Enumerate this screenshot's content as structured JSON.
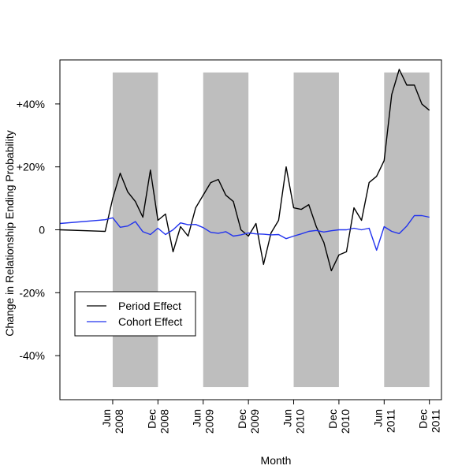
{
  "chart_data": {
    "type": "line",
    "xlabel": "Month",
    "ylabel": "Change in Relationship Ending Probability",
    "x_tick_labels": [
      {
        "month": "Jun",
        "year": "2008",
        "x": 20
      },
      {
        "month": "Dec",
        "year": "2008",
        "x": 26
      },
      {
        "month": "Jun",
        "year": "2009",
        "x": 32
      },
      {
        "month": "Dec",
        "year": "2009",
        "x": 38
      },
      {
        "month": "Jun",
        "year": "2010",
        "x": 44
      },
      {
        "month": "Dec",
        "year": "2010",
        "x": 50
      },
      {
        "month": "Jun",
        "year": "2011",
        "x": 56
      },
      {
        "month": "Dec",
        "year": "2011",
        "x": 62
      }
    ],
    "y_ticks": [
      -40,
      -20,
      0,
      20,
      40
    ],
    "y_tick_labels": [
      "-40%",
      "-20%",
      "0",
      "+20%",
      "+40%"
    ],
    "xlim": [
      13,
      63.6
    ],
    "ylim": [
      -54,
      54
    ],
    "shaded_bands": [
      {
        "from": 20,
        "to": 26,
        "y_from": -50,
        "y_to": 50
      },
      {
        "from": 32,
        "to": 38,
        "y_from": -50,
        "y_to": 50
      },
      {
        "from": 44,
        "to": 50,
        "y_from": -50,
        "y_to": 50
      },
      {
        "from": 56,
        "to": 62,
        "y_from": -50,
        "y_to": 50
      }
    ],
    "legend": {
      "position": "bottom-left"
    },
    "series": [
      {
        "name": "Period Effect",
        "color": "#000000",
        "x": [
          13,
          19,
          20,
          21,
          22,
          23,
          24,
          25,
          26,
          27,
          28,
          29,
          30,
          31,
          32,
          33,
          34,
          35,
          36,
          37,
          38,
          39,
          40,
          41,
          42,
          43,
          44,
          45,
          46,
          47,
          48,
          49,
          50,
          51,
          52,
          53,
          54,
          55,
          56,
          57,
          58,
          59,
          60,
          61,
          62
        ],
        "y": [
          0,
          -0.5,
          10,
          18,
          12,
          9,
          4,
          19,
          3,
          5,
          -7,
          1,
          -2,
          7,
          11,
          15,
          16,
          11,
          9,
          0,
          -2,
          2,
          -11,
          -1,
          3,
          20,
          7,
          6.5,
          8,
          1,
          -4,
          -13,
          -8,
          -7,
          7,
          3,
          15,
          17,
          22,
          43,
          51,
          46,
          46,
          40,
          38
        ]
      },
      {
        "name": "Cohort Effect",
        "color": "#2233ee",
        "x": [
          13,
          19,
          20,
          21,
          22,
          23,
          24,
          25,
          26,
          27,
          28,
          29,
          30,
          31,
          32,
          33,
          34,
          35,
          36,
          37,
          38,
          39,
          40,
          41,
          42,
          43,
          44,
          45,
          46,
          47,
          48,
          49,
          50,
          51,
          52,
          53,
          54,
          55,
          56,
          57,
          58,
          59,
          60,
          61,
          62
        ],
        "y": [
          2,
          3.2,
          3.8,
          0.8,
          1.2,
          2.6,
          -0.6,
          -1.5,
          0.5,
          -1.5,
          0,
          2.2,
          1.6,
          1.7,
          0.7,
          -0.8,
          -1.1,
          -0.6,
          -2,
          -1.6,
          -1,
          -1.3,
          -1.4,
          -1.6,
          -1.5,
          -2.8,
          -2,
          -1.3,
          -0.5,
          -0.2,
          -0.7,
          -0.3,
          0,
          0,
          0.5,
          0,
          0.5,
          -6.5,
          1,
          -0.5,
          -1.2,
          1.2,
          4.5,
          4.5,
          4
        ]
      }
    ]
  }
}
